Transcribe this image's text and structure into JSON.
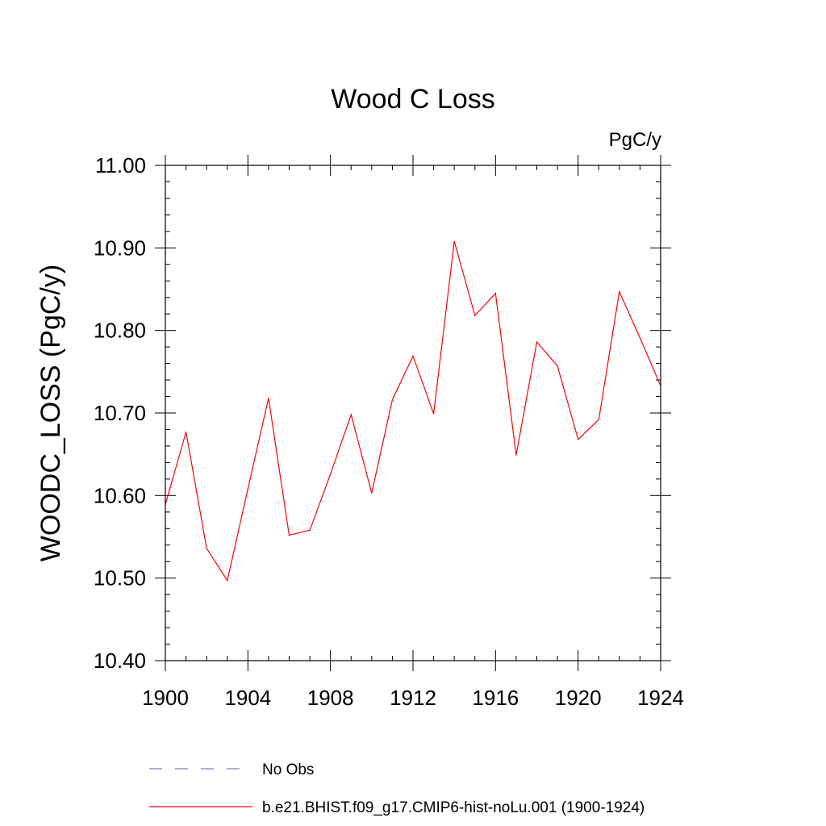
{
  "chart_data": {
    "type": "line",
    "title": "Wood C Loss",
    "units_label": "PgC/y",
    "ylabel": "WOODC_LOSS  (PgC/y)",
    "xlabel": "",
    "xlim": [
      1900,
      1924
    ],
    "ylim": [
      10.4,
      11.0
    ],
    "x_ticks": [
      "1900",
      "1904",
      "1908",
      "1912",
      "1916",
      "1920",
      "1924"
    ],
    "y_ticks": [
      "10.40",
      "10.50",
      "10.60",
      "10.70",
      "10.80",
      "10.90",
      "11.00"
    ],
    "grid": false,
    "series": [
      {
        "name": "b.e21.BHIST.f09_g17.CMIP6-hist-noLu.001 (1900-1924)",
        "color": "#ff0000",
        "style": "solid",
        "x": [
          1900,
          1901,
          1902,
          1903,
          1904,
          1905,
          1906,
          1907,
          1908,
          1909,
          1910,
          1911,
          1912,
          1913,
          1914,
          1915,
          1916,
          1917,
          1918,
          1919,
          1920,
          1921,
          1922,
          1923,
          1924
        ],
        "values": [
          10.589,
          10.677,
          10.536,
          10.497,
          10.608,
          10.718,
          10.552,
          10.558,
          10.626,
          10.698,
          10.603,
          10.716,
          10.769,
          10.699,
          10.908,
          10.818,
          10.845,
          10.649,
          10.786,
          10.757,
          10.668,
          10.692,
          10.847,
          10.791,
          10.733
        ]
      }
    ],
    "legend": {
      "placement": "bottom",
      "entries": [
        {
          "label": "No Obs",
          "color": "#8080c0",
          "style": "dashed"
        },
        {
          "label": "b.e21.BHIST.f09_g17.CMIP6-hist-noLu.001 (1900-1924)",
          "color": "#ff0000",
          "style": "solid"
        }
      ]
    }
  }
}
